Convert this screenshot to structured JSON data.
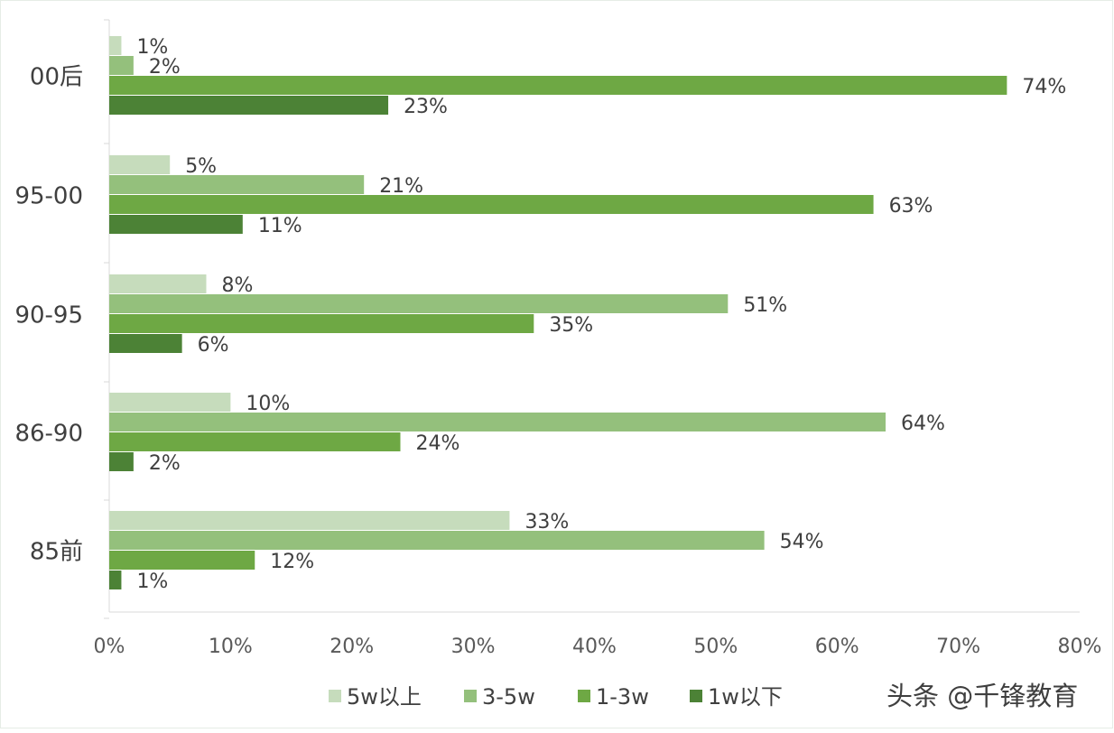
{
  "chart_data": {
    "type": "bar",
    "orientation": "horizontal",
    "categories": [
      "00后",
      "95-00",
      "90-95",
      "86-90",
      "85前"
    ],
    "series": [
      {
        "name": "5w以上",
        "color": "#c6dcbc",
        "values": [
          1,
          5,
          8,
          10,
          33
        ]
      },
      {
        "name": "3-5w",
        "color": "#94c07c",
        "values": [
          2,
          21,
          51,
          64,
          54
        ]
      },
      {
        "name": "1-3w",
        "color": "#6ea844",
        "values": [
          74,
          63,
          35,
          24,
          12
        ]
      },
      {
        "name": "1w以下",
        "color": "#4c8236",
        "values": [
          23,
          11,
          6,
          2,
          1
        ]
      }
    ],
    "value_labels": [
      [
        "1%",
        "5%",
        "8%",
        "10%",
        "33%"
      ],
      [
        "2%",
        "21%",
        "51%",
        "64%",
        "54%"
      ],
      [
        "74%",
        "63%",
        "35%",
        "24%",
        "12%"
      ],
      [
        "23%",
        "11%",
        "6%",
        "2%",
        "1%"
      ]
    ],
    "xlim": [
      0,
      80
    ],
    "xticks": [
      "0%",
      "10%",
      "20%",
      "30%",
      "40%",
      "50%",
      "60%",
      "70%",
      "80%"
    ],
    "title": "",
    "xlabel": "",
    "ylabel": "",
    "grid": false,
    "legend_position": "bottom"
  },
  "watermark": "头条 @千锋教育"
}
